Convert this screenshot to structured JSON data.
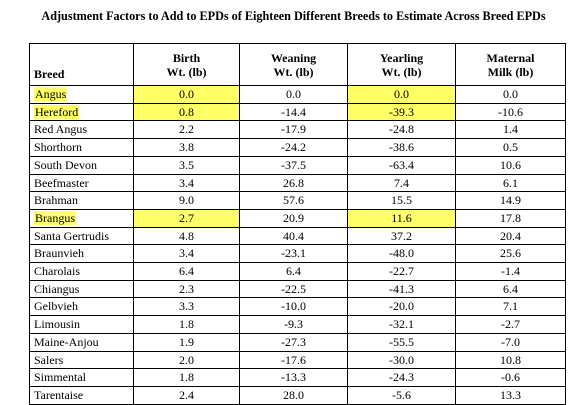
{
  "title": "Adjustment Factors to Add to EPDs of Eighteen Different Breeds to Estimate Across Breed EPDs",
  "columns": [
    {
      "line1": "Breed",
      "line2": ""
    },
    {
      "line1": "Birth",
      "line2": "Wt. (lb)"
    },
    {
      "line1": "Weaning",
      "line2": "Wt. (lb)"
    },
    {
      "line1": "Yearling",
      "line2": "Wt. (lb)"
    },
    {
      "line1": "Maternal",
      "line2": "Milk (lb)"
    }
  ],
  "rows": [
    {
      "breed": "Angus",
      "birth": "0.0",
      "weaning": "0.0",
      "yearling": "0.0",
      "milk": "0.0",
      "highlight": [
        "breed",
        "birth",
        "yearling"
      ]
    },
    {
      "breed": "Hereford",
      "birth": "0.8",
      "weaning": "-14.4",
      "yearling": "-39.3",
      "milk": "-10.6",
      "highlight": [
        "breed",
        "birth",
        "yearling"
      ]
    },
    {
      "breed": "Red Angus",
      "birth": "2.2",
      "weaning": "-17.9",
      "yearling": "-24.8",
      "milk": "1.4",
      "highlight": []
    },
    {
      "breed": "Shorthorn",
      "birth": "3.8",
      "weaning": "-24.2",
      "yearling": "-38.6",
      "milk": "0.5",
      "highlight": []
    },
    {
      "breed": "South Devon",
      "birth": "3.5",
      "weaning": "-37.5",
      "yearling": "-63.4",
      "milk": "10.6",
      "highlight": []
    },
    {
      "breed": "Beefmaster",
      "birth": "3.4",
      "weaning": "26.8",
      "yearling": "7.4",
      "milk": "6.1",
      "highlight": []
    },
    {
      "breed": "Brahman",
      "birth": "9.0",
      "weaning": "57.6",
      "yearling": "15.5",
      "milk": "14.9",
      "highlight": []
    },
    {
      "breed": "Brangus",
      "birth": "2.7",
      "weaning": "20.9",
      "yearling": "11.6",
      "milk": "17.8",
      "highlight": [
        "breed",
        "birth",
        "yearling"
      ]
    },
    {
      "breed": "Santa Gertrudis",
      "birth": "4.8",
      "weaning": "40.4",
      "yearling": "37.2",
      "milk": "20.4",
      "highlight": []
    },
    {
      "breed": "Braunvieh",
      "birth": "3.4",
      "weaning": "-23.1",
      "yearling": "-48.0",
      "milk": "25.6",
      "highlight": []
    },
    {
      "breed": "Charolais",
      "birth": "6.4",
      "weaning": "6.4",
      "yearling": "-22.7",
      "milk": "-1.4",
      "highlight": []
    },
    {
      "breed": "Chiangus",
      "birth": "2.3",
      "weaning": "-22.5",
      "yearling": "-41.3",
      "milk": "6.4",
      "highlight": []
    },
    {
      "breed": "Gelbvieh",
      "birth": "3.3",
      "weaning": "-10.0",
      "yearling": "-20.0",
      "milk": "7.1",
      "highlight": []
    },
    {
      "breed": "Limousin",
      "birth": "1.8",
      "weaning": "-9.3",
      "yearling": "-32.1",
      "milk": "-2.7",
      "highlight": []
    },
    {
      "breed": "Maine-Anjou",
      "birth": "1.9",
      "weaning": "-27.3",
      "yearling": "-55.5",
      "milk": "-7.0",
      "highlight": []
    },
    {
      "breed": "Salers",
      "birth": "2.0",
      "weaning": "-17.6",
      "yearling": "-30.0",
      "milk": "10.8",
      "highlight": []
    },
    {
      "breed": "Simmental",
      "birth": "1.8",
      "weaning": "-13.3",
      "yearling": "-24.3",
      "milk": "-0.6",
      "highlight": []
    },
    {
      "breed": "Tarentaise",
      "birth": "2.4",
      "weaning": "28.0",
      "yearling": "-5.6",
      "milk": "13.3",
      "highlight": []
    }
  ],
  "colors": {
    "highlight": "#ffff66",
    "border": "#000000",
    "text": "#000000"
  }
}
